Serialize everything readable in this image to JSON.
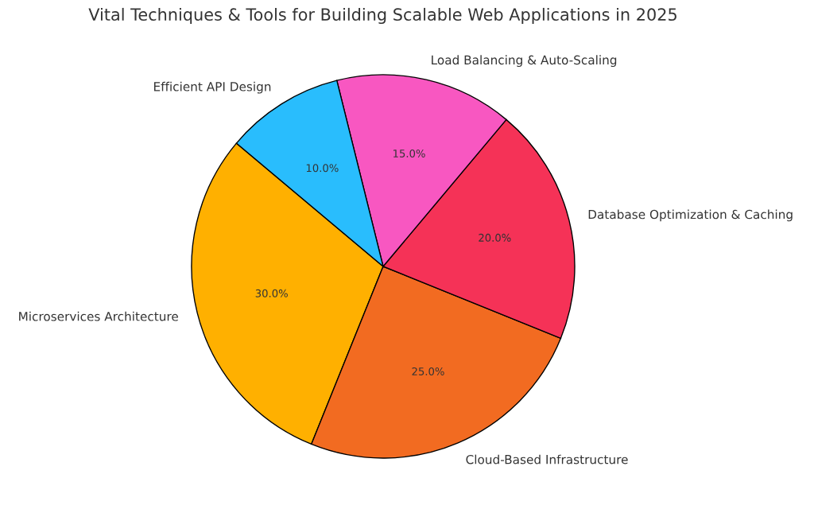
{
  "chart_data": {
    "type": "pie",
    "title": "Vital Techniques & Tools for Building Scalable Web Applications in 2025",
    "categories": [
      "Microservices Architecture",
      "Cloud-Based Infrastructure",
      "Database Optimization & Caching",
      "Load Balancing & Auto-Scaling",
      "Efficient API Design"
    ],
    "values": [
      30,
      25,
      20,
      15,
      10
    ],
    "value_labels": [
      "30.0%",
      "25.0%",
      "20.0%",
      "15.0%",
      "10.0%"
    ],
    "colors": [
      "#ffb000",
      "#f26b21",
      "#f53257",
      "#f857c1",
      "#29bdfd"
    ]
  }
}
